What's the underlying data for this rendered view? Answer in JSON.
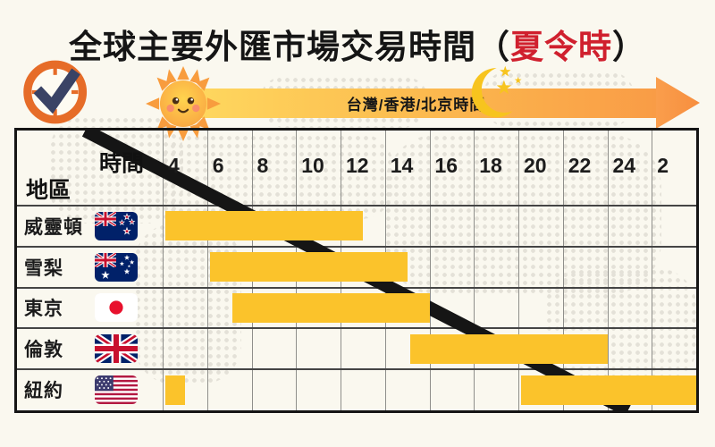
{
  "title": {
    "text": "全球主要外匯市場交易時間",
    "open_paren": "（",
    "highlight": "夏令時",
    "close_paren": "）",
    "highlight_color": "#D0202E"
  },
  "banner": {
    "label": "台灣/香港/北京時間",
    "gradient_from": "#FFDA60",
    "gradient_to": "#F99C46"
  },
  "icons": {
    "clock": "clock-check-icon",
    "sun": "sun-icon",
    "moon": "moon-stars-icon",
    "arrow": "timeline-arrow-icon"
  },
  "table_corner": {
    "top_label": "時間",
    "bottom_label": "地區"
  },
  "chart_data": {
    "type": "bar",
    "subtype": "horizontal-gantt-timeline",
    "title": "全球主要外匯市場交易時間（夏令時）",
    "xlabel": "台灣/香港/北京時間",
    "x_axis": {
      "tick_labels": [
        "4",
        "6",
        "8",
        "10",
        "12",
        "14",
        "16",
        "18",
        "20",
        "22",
        "24",
        "2"
      ],
      "range_hours": [
        4,
        28
      ],
      "tick_step_hours": 2
    },
    "grid": true,
    "legend_position": "none",
    "bar_color": "#FBC32B",
    "rows": [
      {
        "market": "威靈頓",
        "flag": "flag-nz",
        "flag_icon": "nz-flag-icon",
        "segments": [
          {
            "start": 4,
            "end": 13
          }
        ]
      },
      {
        "market": "雪梨",
        "flag": "flag-au",
        "flag_icon": "au-flag-icon",
        "segments": [
          {
            "start": 6,
            "end": 15
          }
        ]
      },
      {
        "market": "東京",
        "flag": "flag-jp",
        "flag_icon": "jp-flag-icon",
        "segments": [
          {
            "start": 7,
            "end": 16
          }
        ]
      },
      {
        "market": "倫敦",
        "flag": "flag-gb",
        "flag_icon": "uk-flag-icon",
        "segments": [
          {
            "start": 15,
            "end": 24
          }
        ]
      },
      {
        "market": "紐約",
        "flag": "flag-us",
        "flag_icon": "us-flag-icon",
        "segments": [
          {
            "start": 20,
            "end": 28
          },
          {
            "start": 4,
            "end": 5
          }
        ]
      }
    ]
  },
  "colors": {
    "background": "#FAF8EF",
    "map_dots": "#E4E1D8",
    "bar": "#FBC32B",
    "accent_red": "#D0202E",
    "clock_orange": "#E66C28",
    "check_navy": "#3A4365",
    "moon_gold": "#F7C41E",
    "grid_line": "#8F8F8B",
    "table_border": "#151515"
  }
}
